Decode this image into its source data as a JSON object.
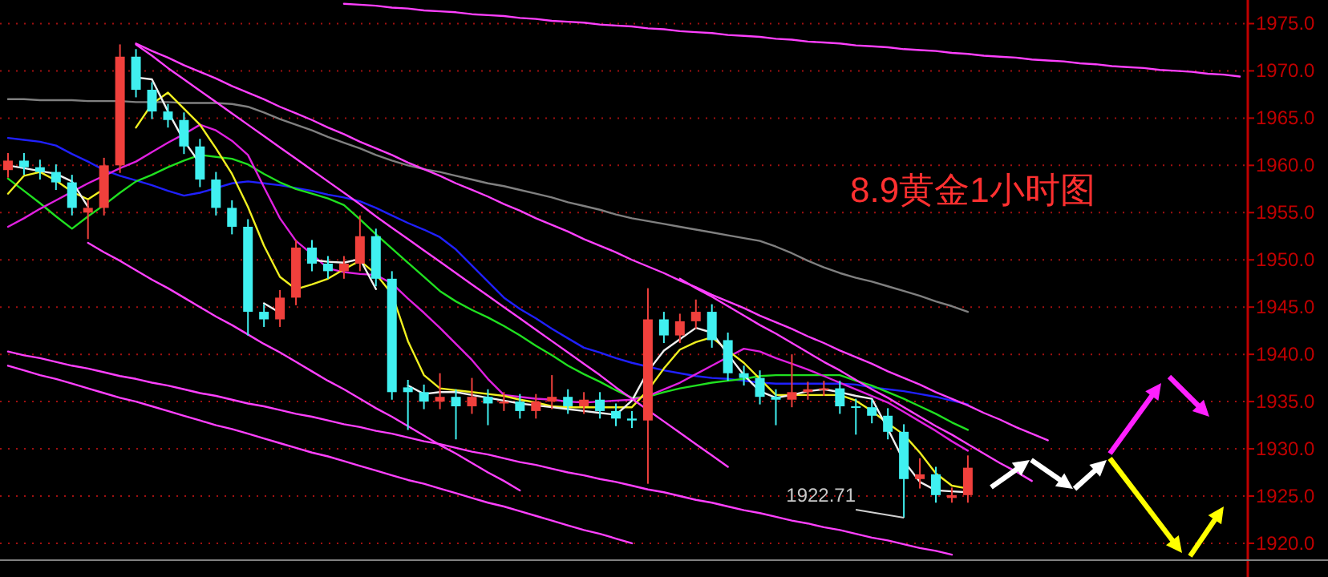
{
  "chart_data": {
    "type": "candlestick",
    "title": "8.9黄金1小时图",
    "categories": [
      null,
      null,
      null,
      null,
      null,
      null,
      null,
      null,
      null,
      null,
      null,
      null,
      null,
      null,
      null,
      null,
      null,
      null,
      null,
      null,
      null,
      null,
      null,
      null,
      null,
      null,
      null,
      null,
      null,
      null,
      null,
      null,
      null,
      null,
      null,
      null,
      null,
      null,
      null,
      null,
      null,
      null,
      null,
      null,
      null,
      null,
      null,
      null,
      null,
      null,
      null,
      null,
      null,
      null,
      null,
      null,
      null,
      null,
      null,
      null,
      null,
      null,
      null,
      null,
      null,
      null,
      null,
      null,
      null,
      null,
      null,
      null,
      null,
      null,
      null,
      null,
      null,
      null
    ],
    "ohlc": [
      [
        1959.5,
        1961.3,
        1958.7,
        1960.5
      ],
      [
        1960.5,
        1961.3,
        1959.0,
        1959.8
      ],
      [
        1959.8,
        1960.6,
        1958.5,
        1959.3
      ],
      [
        1959.3,
        1960.1,
        1957.4,
        1958.2
      ],
      [
        1958.2,
        1959.0,
        1954.7,
        1955.5
      ],
      [
        1955.0,
        1956.3,
        1952.2,
        1955.5
      ],
      [
        1955.5,
        1960.8,
        1954.7,
        1960.0
      ],
      [
        1960.0,
        1972.8,
        1959.2,
        1971.5
      ],
      [
        1971.5,
        1972.3,
        1967.2,
        1968.0
      ],
      [
        1968.0,
        1968.8,
        1964.9,
        1965.7
      ],
      [
        1965.7,
        1966.5,
        1964.0,
        1964.8
      ],
      [
        1964.8,
        1965.6,
        1961.2,
        1962.0
      ],
      [
        1962.0,
        1962.8,
        1957.7,
        1958.5
      ],
      [
        1958.5,
        1959.3,
        1954.7,
        1955.5
      ],
      [
        1955.5,
        1956.3,
        1952.7,
        1953.5
      ],
      [
        1953.5,
        1954.3,
        1942.0,
        1944.5
      ],
      [
        1944.5,
        1945.3,
        1942.9,
        1943.7
      ],
      [
        1943.7,
        1946.8,
        1942.9,
        1946.0
      ],
      [
        1946.0,
        1952.1,
        1945.2,
        1951.3
      ],
      [
        1951.3,
        1952.1,
        1948.8,
        1949.6
      ],
      [
        1949.6,
        1950.4,
        1948.0,
        1948.8
      ],
      [
        1948.8,
        1950.4,
        1948.0,
        1949.6
      ],
      [
        1949.6,
        1954.7,
        1948.8,
        1952.5
      ],
      [
        1952.5,
        1953.3,
        1947.2,
        1948.0
      ],
      [
        1948.0,
        1948.8,
        1935.2,
        1936.0
      ],
      [
        1936.5,
        1937.3,
        1932.0,
        1936.0
      ],
      [
        1936.0,
        1936.8,
        1934.2,
        1935.0
      ],
      [
        1935.0,
        1938.0,
        1934.2,
        1935.5
      ],
      [
        1935.5,
        1936.3,
        1931.0,
        1934.5
      ],
      [
        1934.5,
        1937.5,
        1933.7,
        1935.5
      ],
      [
        1935.5,
        1936.3,
        1932.5,
        1934.8
      ],
      [
        1934.8,
        1936.0,
        1934.0,
        1935.0
      ],
      [
        1935.0,
        1935.8,
        1933.2,
        1934.0
      ],
      [
        1934.0,
        1935.8,
        1933.2,
        1935.0
      ],
      [
        1935.0,
        1937.8,
        1934.2,
        1935.5
      ],
      [
        1935.5,
        1936.3,
        1933.7,
        1934.5
      ],
      [
        1934.5,
        1936.0,
        1933.7,
        1935.2
      ],
      [
        1935.2,
        1936.0,
        1933.2,
        1934.0
      ],
      [
        1934.0,
        1934.8,
        1932.4,
        1933.2
      ],
      [
        1933.2,
        1934.0,
        1932.2,
        1933.0
      ],
      [
        1933.0,
        1947.0,
        1926.3,
        1943.7
      ],
      [
        1943.7,
        1944.5,
        1941.2,
        1942.0
      ],
      [
        1942.0,
        1944.3,
        1941.2,
        1943.5
      ],
      [
        1943.5,
        1945.8,
        1942.7,
        1944.5
      ],
      [
        1944.5,
        1945.3,
        1940.7,
        1941.5
      ],
      [
        1941.5,
        1942.3,
        1937.2,
        1938.0
      ],
      [
        1938.0,
        1938.8,
        1936.7,
        1937.5
      ],
      [
        1937.5,
        1938.3,
        1934.7,
        1935.5
      ],
      [
        1935.5,
        1936.3,
        1932.5,
        1935.2
      ],
      [
        1935.2,
        1940.0,
        1934.4,
        1936.0
      ],
      [
        1936.0,
        1937.1,
        1935.2,
        1936.3
      ],
      [
        1936.3,
        1937.2,
        1935.6,
        1936.4
      ],
      [
        1936.4,
        1937.2,
        1933.7,
        1934.5
      ],
      [
        1934.5,
        1935.3,
        1931.5,
        1934.4
      ],
      [
        1934.4,
        1935.2,
        1932.7,
        1933.5
      ],
      [
        1933.5,
        1934.3,
        1931.0,
        1931.8
      ],
      [
        1931.8,
        1932.6,
        1922.71,
        1926.8
      ],
      [
        1926.8,
        1929.0,
        1925.8,
        1927.3
      ],
      [
        1927.3,
        1928.1,
        1924.3,
        1925.1
      ],
      [
        1924.8,
        1925.9,
        1924.3,
        1925.1
      ],
      [
        1925.1,
        1929.3,
        1924.3,
        1928.0
      ],
      null,
      null,
      null,
      null,
      null,
      null,
      null,
      null,
      null,
      null,
      null,
      null,
      null,
      null,
      null,
      null,
      null
    ],
    "colors": [
      "#f0403c",
      "#40f0f0",
      "#40f0f0",
      "#40f0f0",
      "#40f0f0",
      "#f0403c",
      "#f0403c",
      "#f0403c",
      "#40f0f0",
      "#40f0f0",
      "#40f0f0",
      "#40f0f0",
      "#40f0f0",
      "#40f0f0",
      "#40f0f0",
      "#40f0f0",
      "#40f0f0",
      "#f0403c",
      "#f0403c",
      "#40f0f0",
      "#40f0f0",
      "#f0403c",
      "#f0403c",
      "#40f0f0",
      "#40f0f0",
      "#40f0f0",
      "#40f0f0",
      "#f0403c",
      "#40f0f0",
      "#f0403c",
      "#40f0f0",
      "#f0403c",
      "#40f0f0",
      "#f0403c",
      "#f0403c",
      "#40f0f0",
      "#f0403c",
      "#40f0f0",
      "#40f0f0",
      "#40f0f0",
      "#f0403c",
      "#40f0f0",
      "#f0403c",
      "#f0403c",
      "#40f0f0",
      "#40f0f0",
      "#40f0f0",
      "#40f0f0",
      "#40f0f0",
      "#f0403c",
      "#f0403c",
      "#f0403c",
      "#40f0f0",
      "#40f0f0",
      "#40f0f0",
      "#40f0f0",
      "#40f0f0",
      "#f0403c",
      "#40f0f0",
      "#f0403c",
      "#f0403c",
      null,
      null,
      null,
      null,
      null,
      null,
      null,
      null,
      null,
      null,
      null,
      null,
      null,
      null,
      null,
      null,
      null
    ],
    "series": [
      {
        "type": "line",
        "color": "#808080",
        "values": [
          1967.0,
          1967.0,
          1966.9,
          1966.9,
          1966.9,
          1966.8,
          1966.8,
          1966.8,
          1966.7,
          1966.7,
          1966.7,
          1966.6,
          1966.6,
          1966.6,
          1966.5,
          1966.2,
          1965.6,
          1964.9,
          1964.3,
          1963.7,
          1963.0,
          1962.4,
          1961.8,
          1961.1,
          1960.5,
          1960.0,
          1959.6,
          1959.3,
          1958.9,
          1958.5,
          1958.1,
          1957.8,
          1957.4,
          1957.0,
          1956.6,
          1956.1,
          1955.7,
          1955.3,
          1954.8,
          1954.4,
          1954.1,
          1953.8,
          1953.5,
          1953.2,
          1952.9,
          1952.6,
          1952.3,
          1952.0,
          1951.4,
          1950.7,
          1949.9,
          1949.2,
          1948.6,
          1948.1,
          1947.7,
          1947.2,
          1946.7,
          1946.2,
          1945.6,
          1945.1,
          1944.5,
          null,
          null,
          null,
          null,
          null,
          null,
          null,
          null,
          null,
          null,
          null,
          null,
          null,
          null,
          null,
          null,
          null
        ]
      },
      {
        "type": "line",
        "color": "#2020ff",
        "values": [
          1962.9,
          1962.7,
          1962.5,
          1962.1,
          1961.2,
          1960.4,
          1959.5,
          1958.9,
          1958.4,
          1957.9,
          1957.3,
          1956.8,
          1957.1,
          1957.6,
          1958.1,
          1958.3,
          1958.1,
          1957.9,
          1957.6,
          1957.3,
          1956.9,
          1956.6,
          1956.2,
          1955.5,
          1954.7,
          1953.9,
          1953.2,
          1952.4,
          1951.1,
          1949.4,
          1947.7,
          1946.0,
          1944.8,
          1943.8,
          1942.7,
          1941.7,
          1940.7,
          1940.2,
          1939.6,
          1939.1,
          1938.7,
          1938.3,
          1938.0,
          1937.7,
          1937.5,
          1937.4,
          1937.2,
          1937.0,
          1936.9,
          1936.9,
          1936.9,
          1936.9,
          1936.9,
          1936.8,
          1936.5,
          1936.3,
          1936.1,
          1935.8,
          1935.5,
          1935.1,
          1934.7,
          null,
          null,
          null,
          null,
          null,
          null,
          null,
          null,
          null,
          null,
          null,
          null,
          null,
          null,
          null,
          null,
          null
        ]
      },
      {
        "type": "line",
        "color": "#20e020",
        "values": [
          1958.6,
          1957.3,
          1956.0,
          1954.6,
          1953.3,
          1954.6,
          1955.8,
          1957.1,
          1958.3,
          1959.0,
          1959.8,
          1960.5,
          1961.1,
          1960.9,
          1960.7,
          1960.1,
          1959.1,
          1958.2,
          1957.5,
          1957.0,
          1956.5,
          1955.8,
          1954.3,
          1952.7,
          1951.2,
          1949.7,
          1948.2,
          1946.7,
          1945.6,
          1944.7,
          1943.9,
          1943.0,
          1942.0,
          1940.9,
          1939.9,
          1938.8,
          1937.9,
          1937.1,
          1936.2,
          1935.4,
          1935.5,
          1936.0,
          1936.4,
          1936.7,
          1937.0,
          1937.2,
          1937.4,
          1937.7,
          1937.8,
          1937.8,
          1937.8,
          1937.8,
          1937.8,
          1937.2,
          1936.7,
          1936.0,
          1935.3,
          1934.5,
          1933.7,
          1932.8,
          1932.0,
          null,
          null,
          null,
          null,
          null,
          null,
          null,
          null,
          null,
          null,
          null,
          null,
          null,
          null,
          null,
          null,
          null
        ]
      },
      {
        "type": "line",
        "color": "#e020e0",
        "values": [
          1953.5,
          1954.4,
          1955.4,
          1956.3,
          1957.2,
          1958.1,
          1958.9,
          1959.7,
          1960.4,
          1961.4,
          1962.4,
          1963.3,
          1964.3,
          1963.7,
          1962.6,
          1961.1,
          1957.7,
          1954.4,
          1952.0,
          1950.6,
          1949.1,
          1948.7,
          1948.5,
          1948.4,
          1947.5,
          1945.9,
          1944.4,
          1942.8,
          1941.1,
          1939.4,
          1937.4,
          1935.7,
          1935.5,
          1935.3,
          1935.2,
          1935.0,
          1934.9,
          1935.0,
          1935.1,
          1935.2,
          1935.6,
          1936.3,
          1937.0,
          1937.9,
          1938.8,
          1939.7,
          1940.6,
          1940.3,
          1939.6,
          1939.0,
          1938.4,
          1937.7,
          1937.0,
          1936.3,
          1935.6,
          1934.9,
          1933.9,
          1932.9,
          1931.9,
          1930.8,
          1929.8,
          null,
          null,
          null,
          null,
          null,
          null,
          null,
          null,
          null,
          null,
          null,
          null,
          null,
          null,
          null,
          null,
          null
        ]
      },
      {
        "type": "line",
        "color": "#f0f020",
        "values": [
          1957.0,
          1958.9,
          1959.3,
          1958.4,
          1957.2,
          1956.4,
          1957.5,
          null,
          1964.0,
          1966.5,
          1967.7,
          1966.0,
          1964.3,
          1961.8,
          1959.1,
          1955.6,
          1951.5,
          1948.2,
          1946.9,
          1947.4,
          1948.0,
          1949.0,
          1949.9,
          1948.5,
          1946.4,
          1941.4,
          1937.8,
          1936.4,
          1936.2,
          1936.0,
          1935.8,
          1935.6,
          1935.2,
          1934.9,
          1934.5,
          1934.4,
          1934.4,
          1934.4,
          1934.4,
          1934.4,
          1936.2,
          1938.5,
          1940.5,
          1941.3,
          1941.8,
          1940.4,
          1939.1,
          1937.4,
          1935.7,
          1935.7,
          1935.7,
          1935.7,
          1935.7,
          1935.1,
          1934.0,
          1932.7,
          1931.5,
          1929.6,
          1927.4,
          1926.1,
          1925.8,
          null,
          null,
          null,
          null,
          null,
          null,
          null,
          null,
          null,
          null,
          null,
          null,
          null,
          null,
          null,
          null,
          null
        ]
      },
      {
        "type": "line",
        "color": "#f0f0f0",
        "values": [
          1960.0,
          1959.7,
          1959.4,
          1959.1,
          1958.3,
          1955.6,
          null,
          null,
          1969.3,
          1969.1,
          1965.7,
          1962.6,
          1960.2,
          null,
          null,
          null,
          1945.4,
          1944.4,
          null,
          1950.0,
          1949.8,
          1949.7,
          1950.1,
          1946.9,
          null,
          1936.7,
          1935.8,
          1936.0,
          1936.0,
          1935.7,
          1935.4,
          1935.1,
          1934.8,
          1934.6,
          1934.4,
          1934.2,
          1934.0,
          1933.8,
          1933.6,
          1935.1,
          1938.2,
          1940.4,
          1941.6,
          1942.8,
          1942.3,
          1940.0,
          1937.8,
          1936.1,
          1935.4,
          1935.7,
          1936.1,
          1936.3,
          1936.0,
          1935.6,
          1935.3,
          1932.1,
          1928.7,
          1926.5,
          1925.6,
          1925.5,
          1925.4,
          null,
          null,
          null,
          null,
          null,
          null,
          null,
          null,
          null,
          null,
          null,
          null,
          null,
          null,
          null,
          null,
          null
        ]
      },
      {
        "type": "line",
        "color": "#ff40ff",
        "values": [
          null,
          null,
          null,
          null,
          null,
          null,
          null,
          null,
          null,
          null,
          null,
          null,
          null,
          null,
          null,
          null,
          null,
          null,
          null,
          null,
          null,
          1977.1,
          1977.0,
          1976.9,
          1976.7,
          1976.6,
          1976.4,
          1976.3,
          1976.2,
          1976.0,
          1975.9,
          1975.8,
          1975.6,
          1975.5,
          1975.3,
          1975.2,
          1975.1,
          1974.9,
          1974.8,
          1974.7,
          1974.5,
          1974.4,
          1974.2,
          1974.1,
          1974.0,
          1973.8,
          1973.7,
          1973.6,
          1973.4,
          1973.3,
          1973.1,
          1973.0,
          1972.9,
          1972.7,
          1972.6,
          1972.5,
          1972.3,
          1972.2,
          1972.1,
          1971.9,
          1971.8,
          1971.6,
          1971.5,
          1971.4,
          1971.2,
          1971.1,
          1971.0,
          1970.8,
          1970.7,
          1970.5,
          1970.4,
          1970.3,
          1970.1,
          1970.0,
          1969.9,
          1969.7,
          1969.6,
          1969.4
        ]
      },
      {
        "type": "line",
        "color": "#ff40ff",
        "values": [
          null,
          null,
          null,
          null,
          null,
          null,
          null,
          null,
          1972.9,
          1972.1,
          1971.4,
          1970.6,
          1969.9,
          1969.2,
          1968.4,
          1967.7,
          1967.0,
          1966.2,
          1965.5,
          1964.8,
          1964.0,
          1963.3,
          1962.5,
          1961.8,
          1961.1,
          1960.3,
          1959.6,
          1958.9,
          1958.1,
          1957.4,
          1956.7,
          1955.9,
          1955.2,
          1954.4,
          1953.7,
          1953.0,
          1952.2,
          1951.5,
          1950.8,
          1950.0,
          1949.3,
          1948.6,
          1947.8,
          1947.1,
          1946.3,
          1945.6,
          1944.9,
          1944.1,
          1943.4,
          1942.7,
          1941.9,
          1941.2,
          1940.4,
          1939.7,
          1939.0,
          1938.2,
          1937.5,
          1936.8,
          1936.0,
          1935.3,
          1934.6,
          1933.8,
          1933.1,
          1932.3,
          1931.6,
          1930.9,
          null,
          null,
          null,
          null,
          null,
          null,
          null,
          null,
          null,
          null,
          null,
          null
        ]
      },
      {
        "type": "line",
        "color": "#ff40ff",
        "values": [
          null,
          null,
          null,
          null,
          null,
          null,
          null,
          null,
          1972.8,
          1971.6,
          1970.3,
          1969.1,
          1967.9,
          1966.7,
          1965.5,
          1964.3,
          1963.1,
          1961.9,
          1960.7,
          1959.5,
          1958.3,
          1957.1,
          1955.9,
          1954.6,
          1953.4,
          1952.2,
          1951.0,
          1949.8,
          1948.6,
          1947.4,
          1946.2,
          1945.0,
          1943.8,
          1942.6,
          1941.4,
          1940.2,
          1939.0,
          1937.8,
          1936.5,
          1935.3,
          1934.1,
          1932.9,
          1931.7,
          1930.5,
          1929.3,
          1928.1,
          null,
          null,
          null,
          null,
          null,
          null,
          null,
          null,
          null,
          null,
          null,
          null,
          null,
          null,
          null,
          null,
          null,
          null,
          null,
          null,
          null,
          null,
          null,
          null,
          null,
          null,
          null,
          null,
          null,
          null,
          null,
          null
        ]
      },
      {
        "type": "line",
        "color": "#ff40ff",
        "values": [
          null,
          null,
          null,
          null,
          null,
          null,
          null,
          null,
          null,
          null,
          null,
          null,
          null,
          null,
          null,
          null,
          null,
          null,
          null,
          null,
          null,
          null,
          null,
          null,
          null,
          null,
          null,
          null,
          null,
          null,
          null,
          null,
          null,
          null,
          null,
          null,
          null,
          null,
          null,
          null,
          null,
          null,
          1948.0,
          1947.0,
          1946.1,
          1945.1,
          1944.1,
          1943.1,
          1942.2,
          1941.2,
          1940.2,
          1939.2,
          1938.3,
          1937.3,
          1936.3,
          1935.4,
          1934.4,
          1933.4,
          1932.4,
          1931.5,
          1930.5,
          1929.5,
          1928.5,
          1927.6,
          1926.6,
          null,
          null,
          null,
          null,
          null,
          null,
          null,
          null,
          null,
          null,
          null,
          null,
          null
        ]
      },
      {
        "type": "line",
        "color": "#ff40ff",
        "values": [
          null,
          null,
          null,
          null,
          null,
          1951.8,
          1950.8,
          1949.9,
          1948.9,
          1947.9,
          1947.0,
          1946.0,
          1945.0,
          1944.0,
          1943.1,
          1942.1,
          1941.1,
          1940.2,
          1939.2,
          1938.2,
          1937.2,
          1936.3,
          1935.3,
          1934.3,
          1933.4,
          1932.4,
          1931.4,
          1930.4,
          1929.5,
          1928.5,
          1927.5,
          1926.6,
          1925.6,
          null,
          null,
          null,
          null,
          null,
          null,
          null,
          null,
          null,
          null,
          null,
          null,
          null,
          null,
          null,
          null,
          null,
          null,
          null,
          null,
          null,
          null,
          null,
          null,
          null,
          null,
          null,
          null,
          null,
          null,
          null,
          null,
          null,
          null,
          null,
          null,
          null,
          null,
          null,
          null,
          null,
          null,
          null,
          null,
          null
        ]
      },
      {
        "type": "line",
        "color": "#ff40ff",
        "values": [
          1940.3,
          1939.9,
          1939.6,
          1939.2,
          1938.8,
          1938.5,
          1938.1,
          1937.7,
          1937.4,
          1937.0,
          1936.7,
          1936.3,
          1935.9,
          1935.6,
          1935.2,
          1934.8,
          1934.5,
          1934.1,
          1933.7,
          1933.4,
          1933.0,
          1932.6,
          1932.3,
          1931.9,
          1931.6,
          1931.2,
          1930.8,
          1930.5,
          1930.1,
          1929.7,
          1929.4,
          1929.0,
          1928.6,
          1928.3,
          1927.9,
          1927.5,
          1927.2,
          1926.8,
          1926.5,
          1926.1,
          1925.7,
          1925.4,
          1925.0,
          1924.6,
          1924.3,
          1923.9,
          1923.5,
          1923.2,
          1922.8,
          1922.4,
          1922.1,
          1921.7,
          1921.4,
          1921.0,
          1920.6,
          1920.3,
          1919.9,
          1919.5,
          1919.2,
          1918.8,
          null,
          null,
          null,
          null,
          null,
          null,
          null,
          null,
          null,
          null,
          null,
          null,
          null,
          null,
          null,
          null,
          null,
          null
        ]
      },
      {
        "type": "line",
        "color": "#ff40ff",
        "values": [
          1938.8,
          1938.3,
          1937.8,
          1937.4,
          1936.9,
          1936.4,
          1935.9,
          1935.4,
          1935.0,
          1934.5,
          1934.0,
          1933.5,
          1933.0,
          1932.5,
          1932.1,
          1931.6,
          1931.1,
          1930.6,
          1930.1,
          1929.6,
          1929.2,
          1928.7,
          1928.2,
          1927.7,
          1927.2,
          1926.7,
          1926.3,
          1925.8,
          1925.3,
          1924.8,
          1924.3,
          1923.9,
          1923.4,
          1922.9,
          1922.4,
          1921.9,
          1921.4,
          1921.0,
          1920.5,
          1920.0,
          null,
          null,
          null,
          null,
          null,
          null,
          null,
          null,
          null,
          null,
          null,
          null,
          null,
          null,
          null,
          null,
          null,
          null,
          null,
          null,
          null,
          null,
          null,
          null,
          null,
          null,
          null,
          null,
          null,
          null,
          null,
          null,
          null,
          null,
          null,
          null,
          null,
          null
        ]
      }
    ],
    "annotations": [
      {
        "text": "1922.71",
        "y": 1922.71
      }
    ],
    "ylim": [
      1918.3,
      1977.5
    ],
    "yticks": [
      {
        "value": 1920,
        "label": "1920.0"
      },
      {
        "value": 1925,
        "label": "1925.0"
      },
      {
        "value": 1930,
        "label": "1930.0"
      },
      {
        "value": 1935,
        "label": "1935.0"
      },
      {
        "value": 1940,
        "label": "1940.0"
      },
      {
        "value": 1945,
        "label": "1945.0"
      },
      {
        "value": 1950,
        "label": "1950.0"
      },
      {
        "value": 1955,
        "label": "1955.0"
      },
      {
        "value": 1960,
        "label": "1960.0"
      },
      {
        "value": 1965,
        "label": "1965.0"
      },
      {
        "value": 1970,
        "label": "1970.0"
      },
      {
        "value": 1975,
        "label": "1975.0"
      }
    ],
    "grid": "y",
    "tick_labels": "y"
  }
}
